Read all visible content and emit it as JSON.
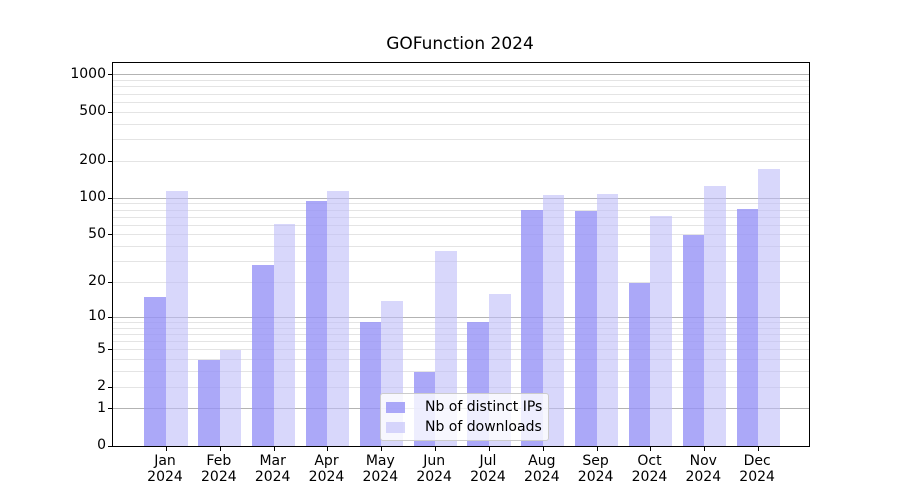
{
  "chart_data": {
    "type": "bar",
    "title": "GOFunction 2024",
    "xlabel": "",
    "ylabel": "",
    "categories": [
      "Jan",
      "Feb",
      "Mar",
      "Apr",
      "May",
      "Jun",
      "Jul",
      "Aug",
      "Sep",
      "Oct",
      "Nov",
      "Dec"
    ],
    "category_year": "2024",
    "series": [
      {
        "name": "Nb of distinct IPs",
        "color": "#a9a6f7",
        "color_rgba": "rgba(150,146,246,0.8)",
        "values": [
          15,
          4,
          28,
          94,
          9,
          3,
          9,
          80,
          78,
          20,
          50,
          82
        ]
      },
      {
        "name": "Nb of downloads",
        "color": "#d9d8fa",
        "color_rgba": "rgba(190,188,248,0.6)",
        "values": [
          115,
          5,
          62,
          114,
          14,
          37,
          16,
          107,
          108,
          72,
          126,
          174
        ]
      }
    ],
    "yscale": "log10(1+y)",
    "ylim": [
      0,
      1250
    ],
    "ytick_values": [
      0,
      1,
      2,
      5,
      10,
      20,
      50,
      100,
      200,
      500,
      1000
    ],
    "ytick_labels": [
      "0",
      "1",
      "2",
      "5",
      "10",
      "20",
      "50",
      "100",
      "200",
      "500",
      "1000"
    ],
    "ygrid_major": [
      1,
      10,
      100,
      1000
    ],
    "ygrid_minor": [
      2,
      3,
      4,
      5,
      6,
      7,
      8,
      9,
      20,
      30,
      40,
      50,
      60,
      70,
      80,
      90,
      200,
      300,
      400,
      500,
      600,
      700,
      800,
      900
    ],
    "grid": "horizontal, major and minor, behind bars",
    "legend_position": "bottom-center",
    "colors": {
      "major_grid": "#b3b3b3",
      "minor_grid": "#e4e4e4",
      "axis": "#000000",
      "legend_border": "#cccccc",
      "background": "#ffffff"
    }
  }
}
